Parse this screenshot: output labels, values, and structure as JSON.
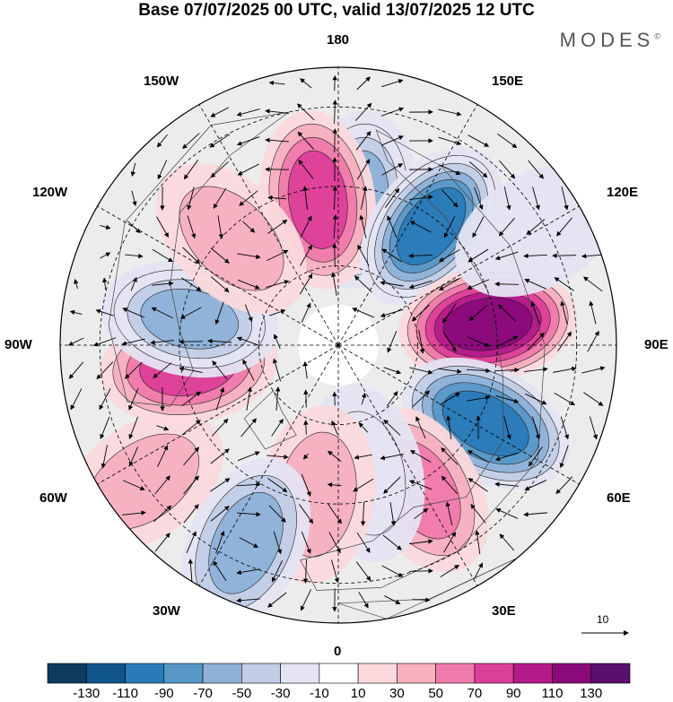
{
  "title": "Base 07/07/2025 00 UTC, valid 13/07/2025 12 UTC",
  "brand": "MODES",
  "brand_mark": "©",
  "longitude_labels": {
    "lon_180": "180",
    "lon_150e": "150E",
    "lon_120e": "120E",
    "lon_90e": "90E",
    "lon_60e": "60E",
    "lon_30e": "30E",
    "lon_0": "0",
    "lon_30w": "30W",
    "lon_60w": "60W",
    "lon_90w": "90W",
    "lon_120w": "120W",
    "lon_150w": "150W"
  },
  "vector_reference": {
    "label": "10"
  },
  "colorbar": {
    "levels": [
      "-130",
      "-110",
      "-90",
      "-70",
      "-50",
      "-30",
      "-10",
      "10",
      "30",
      "50",
      "70",
      "90",
      "110",
      "130"
    ],
    "colors": [
      "#0d3a5e",
      "#10558a",
      "#2a7ab8",
      "#5798c8",
      "#8eb1d8",
      "#c1cde6",
      "#e4e4f2",
      "#ffffff",
      "#fbd9dd",
      "#f6b0bf",
      "#ef7aab",
      "#dc3f98",
      "#b51a8a",
      "#8a0a7c",
      "#5a0f6e"
    ]
  },
  "field": {
    "neutral_color": "#ececec",
    "ocean_color": "#ffffff",
    "anomaly_centers": [
      {
        "lon": 172,
        "colat_deg": 37,
        "value": -70
      },
      {
        "lon": -172,
        "colat_deg": 37,
        "value": 80
      },
      {
        "lon": 142,
        "colat_deg": 38,
        "value": -110
      },
      {
        "lon": 98,
        "colat_deg": 38,
        "value": 110
      },
      {
        "lon": 62,
        "colat_deg": 42,
        "value": -100
      },
      {
        "lon": 30,
        "colat_deg": 42,
        "value": 60
      },
      {
        "lon": 12,
        "colat_deg": 33,
        "value": -30
      },
      {
        "lon": -8,
        "colat_deg": 38,
        "value": 30
      },
      {
        "lon": -25,
        "colat_deg": 55,
        "value": -60
      },
      {
        "lon": -55,
        "colat_deg": 60,
        "value": 40
      },
      {
        "lon": -82,
        "colat_deg": 38,
        "value": 80
      },
      {
        "lon": -100,
        "colat_deg": 38,
        "value": -70
      },
      {
        "lon": -135,
        "colat_deg": 38,
        "value": 40
      },
      {
        "lon": 120,
        "colat_deg": 58,
        "value": -20
      }
    ]
  }
}
